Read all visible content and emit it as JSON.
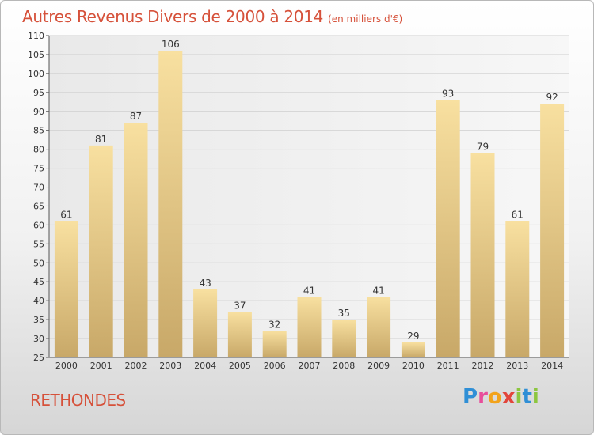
{
  "header": {
    "title": "Autres Revenus Divers de 2000 à 2014",
    "subtitle": "(en milliers d'€)"
  },
  "footer": {
    "place": "RETHONDES",
    "logo_letters": [
      "P",
      "r",
      "o",
      "x",
      "i",
      "t",
      "i"
    ],
    "logo_colors": [
      "#2f8fd6",
      "#e84e9b",
      "#f2a31b",
      "#e2453b",
      "#8cc63f",
      "#2f8fd6",
      "#8cc63f"
    ]
  },
  "chart_data": {
    "type": "bar",
    "categories": [
      "2000",
      "2001",
      "2002",
      "2003",
      "2004",
      "2005",
      "2006",
      "2007",
      "2008",
      "2009",
      "2010",
      "2011",
      "2012",
      "2013",
      "2014"
    ],
    "values": [
      61,
      81,
      87,
      106,
      43,
      37,
      32,
      41,
      35,
      41,
      29,
      93,
      79,
      61,
      92
    ],
    "title": "Autres Revenus Divers de 2000 à 2014",
    "subtitle": "(en milliers d'€)",
    "xlabel": "",
    "ylabel": "",
    "ylim": [
      25,
      110
    ],
    "yticks": [
      25,
      30,
      35,
      40,
      45,
      50,
      55,
      60,
      65,
      70,
      75,
      80,
      85,
      90,
      95,
      100,
      105,
      110
    ],
    "grid": true,
    "bar_color_light": "#f8e0a0",
    "bar_color_dark": "#c8a868"
  }
}
